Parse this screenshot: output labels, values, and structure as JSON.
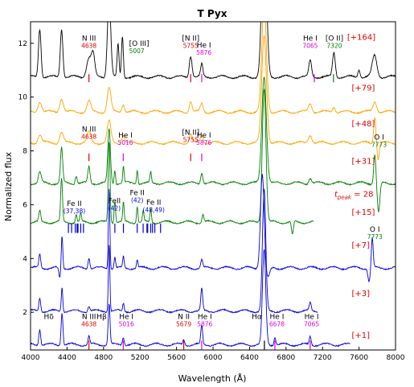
{
  "chart_data": {
    "type": "line",
    "title": "T Pyx",
    "xlabel": "Wavelength (Å)",
    "ylabel": "Normalized flux",
    "xlim": [
      4000,
      8000
    ],
    "ylim": [
      0.6,
      12.8
    ],
    "xticks": [
      4000,
      4400,
      4800,
      5200,
      5600,
      6000,
      6400,
      6800,
      7200,
      7600,
      8000
    ],
    "yticks": [
      2,
      4,
      6,
      8,
      10,
      12
    ],
    "colors": {
      "black": "#000000",
      "orange": "#FFA500",
      "green": "#008000",
      "blue": "#0000E0",
      "red": "#E00000",
      "magenta": "#E000E0"
    },
    "series": [
      {
        "name": "+164",
        "label": "[+164]",
        "color": "#000000",
        "offset": 10.75,
        "label_x": 7470,
        "label_y": 12.12,
        "xrange": [
          4000,
          8000
        ],
        "peaks": [
          [
            4101,
            1.8,
            14
          ],
          [
            4340,
            1.8,
            14
          ],
          [
            4640,
            0.7,
            25
          ],
          [
            4686,
            0.8,
            18
          ],
          [
            4861,
            3,
            18
          ],
          [
            4959,
            1.2,
            10
          ],
          [
            5007,
            1.5,
            10
          ],
          [
            5755,
            0.8,
            15
          ],
          [
            5876,
            0.45,
            12
          ],
          [
            6560,
            6,
            25
          ],
          [
            7065,
            0.6,
            15
          ],
          [
            7325,
            0.9,
            15
          ],
          [
            7600,
            0.3,
            12
          ],
          [
            7770,
            0.8,
            25
          ]
        ]
      },
      {
        "name": "+79",
        "label": "[+79]",
        "color": "#FFA500",
        "offset": 9.45,
        "label_x": 7520,
        "label_y": 10.25,
        "xrange": [
          4000,
          8000
        ],
        "peaks": [
          [
            4101,
            0.4,
            20
          ],
          [
            4340,
            0.5,
            20
          ],
          [
            4640,
            0.4,
            20
          ],
          [
            4861,
            0.9,
            20
          ],
          [
            5016,
            0.3,
            15
          ],
          [
            5755,
            0.4,
            15
          ],
          [
            5876,
            0.3,
            15
          ],
          [
            6560,
            4,
            25
          ],
          [
            7065,
            0.3,
            20
          ],
          [
            7325,
            0.2,
            15
          ],
          [
            7773,
            0.4,
            20
          ]
        ]
      },
      {
        "name": "+48",
        "label": "[+48]",
        "color": "#FFA500",
        "offset": 8.3,
        "label_x": 7520,
        "label_y": 8.92,
        "xrange": [
          4000,
          8000
        ],
        "peaks": [
          [
            4101,
            0.3,
            20
          ],
          [
            4340,
            0.4,
            20
          ],
          [
            4640,
            0.4,
            20
          ],
          [
            4861,
            0.8,
            20
          ],
          [
            5016,
            0.3,
            15
          ],
          [
            5755,
            0.3,
            15
          ],
          [
            5876,
            0.3,
            15
          ],
          [
            6560,
            4,
            25
          ],
          [
            7065,
            0.3,
            20
          ],
          [
            7773,
            1,
            12
          ],
          [
            7810,
            -0.6,
            12
          ]
        ]
      },
      {
        "name": "+31",
        "label": "[+31]",
        "color": "#008000",
        "offset": 6.8,
        "label_x": 7520,
        "label_y": 7.52,
        "xrange": [
          4000,
          8000
        ],
        "peaks": [
          [
            4101,
            0.4,
            15
          ],
          [
            4340,
            1.3,
            12
          ],
          [
            4500,
            0.3,
            10
          ],
          [
            4640,
            0.6,
            12
          ],
          [
            4861,
            2,
            14
          ],
          [
            4924,
            0.5,
            8
          ],
          [
            5018,
            0.6,
            8
          ],
          [
            5169,
            0.5,
            8
          ],
          [
            5317,
            0.4,
            8
          ],
          [
            5876,
            0.4,
            12
          ],
          [
            6560,
            4,
            25
          ],
          [
            7065,
            0.2,
            15
          ],
          [
            7773,
            1.1,
            12
          ],
          [
            7815,
            -1.1,
            14
          ]
        ]
      },
      {
        "name": "+15",
        "label": "[+15]",
        "color": "#008000",
        "offset": 5.35,
        "label_x": 7520,
        "label_y": 5.62,
        "xrange": [
          4000,
          7100
        ],
        "peaks": [
          [
            4101,
            0.4,
            10
          ],
          [
            4340,
            1.6,
            10
          ],
          [
            4500,
            0.3,
            8
          ],
          [
            4550,
            0.3,
            8
          ],
          [
            4861,
            3,
            10
          ],
          [
            4924,
            0.8,
            8
          ],
          [
            5018,
            0.7,
            8
          ],
          [
            5169,
            0.6,
            8
          ],
          [
            5235,
            0.4,
            8
          ],
          [
            5317,
            0.5,
            8
          ],
          [
            5890,
            0.3,
            10
          ],
          [
            6560,
            5,
            20
          ],
          [
            6870,
            -0.5,
            10
          ]
        ]
      },
      {
        "name": "+7",
        "label": "[+7]",
        "color": "#0000E0",
        "offset": 3.65,
        "label_x": 7520,
        "label_y": 4.4,
        "xrange": [
          4000,
          8000
        ],
        "peaks": [
          [
            4101,
            0.5,
            10
          ],
          [
            4320,
            -0.4,
            10
          ],
          [
            4345,
            1.2,
            8
          ],
          [
            4640,
            0.4,
            10
          ],
          [
            4861,
            3,
            8
          ],
          [
            4924,
            0.4,
            8
          ],
          [
            5018,
            0.4,
            8
          ],
          [
            5169,
            0.3,
            8
          ],
          [
            5876,
            0.3,
            10
          ],
          [
            6540,
            3.5,
            20
          ],
          [
            6600,
            -0.4,
            20
          ],
          [
            7745,
            1.1,
            10
          ],
          [
            7710,
            -0.5,
            12
          ]
        ]
      },
      {
        "name": "+3",
        "label": "[+3]",
        "color": "#0000E0",
        "offset": 2.05,
        "label_x": 7520,
        "label_y": 2.6,
        "xrange": [
          4000,
          7150
        ],
        "peaks": [
          [
            4101,
            0.5,
            10
          ],
          [
            4345,
            0.9,
            8
          ],
          [
            4640,
            0.2,
            10
          ],
          [
            4861,
            2.5,
            8
          ],
          [
            5018,
            0.3,
            8
          ],
          [
            5876,
            0.8,
            10
          ],
          [
            6560,
            4.5,
            18
          ],
          [
            7065,
            0.3,
            10
          ]
        ]
      },
      {
        "name": "+1",
        "label": "[+1]",
        "color": "#0000E0",
        "offset": 0.8,
        "label_x": 7520,
        "label_y": 1.05,
        "xrange": [
          4000,
          7500
        ],
        "peaks": [
          [
            4101,
            0.6,
            10
          ],
          [
            4345,
            1.2,
            10
          ],
          [
            4640,
            0.3,
            10
          ],
          [
            4861,
            1.5,
            10
          ],
          [
            5016,
            0.3,
            10
          ],
          [
            5679,
            0.2,
            10
          ],
          [
            5876,
            0.7,
            10
          ],
          [
            6560,
            3.5,
            18
          ],
          [
            6678,
            0.3,
            10
          ],
          [
            7065,
            0.3,
            10
          ]
        ]
      }
    ],
    "line_labels": [
      {
        "text": "N III",
        "wave": "4638",
        "x": 4640,
        "y": 12.1,
        "wave_color": "#E00000",
        "marker": {
          "x": 4640,
          "y0": 10.85,
          "y1": 10.55,
          "color": "#E00000"
        }
      },
      {
        "text": "[O III]",
        "wave": "5007",
        "x": 5080,
        "y": 11.9,
        "wave_color": "#008000",
        "align": "start"
      },
      {
        "text": "[N II]",
        "wave": "5755",
        "x": 5755,
        "y": 12.1,
        "wave_color": "#E00000",
        "marker": {
          "x": 5755,
          "y0": 10.85,
          "y1": 10.55,
          "color": "#E00000"
        }
      },
      {
        "text": "He I",
        "wave": "5876",
        "x": 5900,
        "y": 11.85,
        "wave_color": "#E000E0",
        "marker": {
          "x": 5876,
          "y0": 10.85,
          "y1": 10.55,
          "color": "#E000E0"
        }
      },
      {
        "text": "He I",
        "wave": "7065",
        "x": 7065,
        "y": 12.1,
        "wave_color": "#E000E0",
        "marker": {
          "x": 7110,
          "y0": 10.85,
          "y1": 10.55,
          "color": "#E000E0"
        }
      },
      {
        "text": "[O II]",
        "wave": "7320",
        "x": 7330,
        "y": 12.1,
        "wave_color": "#008000",
        "marker": {
          "x": 7320,
          "y0": 10.85,
          "y1": 10.55,
          "color": "#008000"
        }
      },
      {
        "text": "N III",
        "wave": "4638",
        "x": 4640,
        "y": 8.72,
        "wave_color": "#E00000",
        "marker": {
          "x": 4640,
          "y0": 7.9,
          "y1": 7.62,
          "color": "#E00000"
        }
      },
      {
        "text": "He I",
        "wave": "5016",
        "x": 5040,
        "y": 8.5,
        "wave_color": "#E000E0",
        "marker": {
          "x": 5016,
          "y0": 7.9,
          "y1": 7.62,
          "color": "#E000E0"
        }
      },
      {
        "text": "[N II]",
        "wave": "5755",
        "x": 5755,
        "y": 8.6,
        "wave_color": "#E00000",
        "marker": {
          "x": 5755,
          "y0": 7.9,
          "y1": 7.62,
          "color": "#E00000"
        }
      },
      {
        "text": "He I",
        "wave": "5876",
        "x": 5900,
        "y": 8.5,
        "wave_color": "#E000E0",
        "marker": {
          "x": 5876,
          "y0": 7.9,
          "y1": 7.62,
          "color": "#E000E0"
        }
      },
      {
        "text": "O I",
        "wave": "7773",
        "x": 7820,
        "y": 8.42,
        "wave_color": "#008000"
      },
      {
        "text": "Fe II",
        "wave": "(37,38)",
        "x": 4480,
        "y": 5.95,
        "wave_color": "#0000E0",
        "ticks": {
          "xs": [
            4415,
            4450,
            4490,
            4510,
            4520,
            4550,
            4580
          ],
          "y0": 5.3,
          "y1": 4.95,
          "color": "#0000E0"
        }
      },
      {
        "text": "FeII",
        "wave": "(42)",
        "x": 4920,
        "y": 6.05,
        "wave_color": "#0000E0",
        "ticks": {
          "xs": [
            4924,
            5018
          ],
          "y0": 5.3,
          "y1": 4.95,
          "color": "#0000E0"
        }
      },
      {
        "text": "Fe II",
        "wave": "(42)",
        "x": 5169,
        "y": 6.35,
        "wave_color": "#0000E0",
        "ticks": {
          "xs": [
            5169
          ],
          "y0": 5.3,
          "y1": 4.95,
          "color": "#0000E0"
        }
      },
      {
        "text": "Fe II",
        "wave": "(48,49)",
        "x": 5350,
        "y": 6.0,
        "wave_color": "#0000E0",
        "ticks": {
          "xs": [
            5234,
            5276,
            5284,
            5317,
            5337,
            5362,
            5425
          ],
          "y0": 5.3,
          "y1": 4.95,
          "color": "#0000E0"
        }
      },
      {
        "text": "O I",
        "wave": "7773",
        "x": 7773,
        "y": 5.0,
        "wave_color": "#008000"
      },
      {
        "text": "Hδ",
        "x": 4200,
        "y": 1.75
      },
      {
        "text": "N III",
        "wave": "4638",
        "x": 4640,
        "y": 1.75,
        "wave_color": "#E00000",
        "marker": {
          "x": 4640,
          "y0": 0.95,
          "y1": 0.62,
          "color": "#E00000"
        }
      },
      {
        "text": "Hβ",
        "x": 4780,
        "y": 1.75
      },
      {
        "text": "He I",
        "wave": "5016",
        "x": 5050,
        "y": 1.75,
        "wave_color": "#E000E0",
        "marker": {
          "x": 5016,
          "y0": 0.95,
          "y1": 0.62,
          "color": "#E000E0"
        }
      },
      {
        "text": "N II",
        "wave": "5679",
        "x": 5679,
        "y": 1.75,
        "wave_color": "#E00000",
        "marker": {
          "x": 5679,
          "y0": 0.95,
          "y1": 0.62,
          "color": "#E00000"
        }
      },
      {
        "text": "He I",
        "wave": "5876",
        "x": 5910,
        "y": 1.75,
        "wave_color": "#E000E0",
        "marker": {
          "x": 5876,
          "y0": 0.95,
          "y1": 0.62,
          "color": "#E000E0"
        }
      },
      {
        "text": "Hα",
        "x": 6480,
        "y": 1.75,
        "marker": {
          "x": 6563,
          "y0": 0.95,
          "y1": 0.62,
          "color": "#000000"
        }
      },
      {
        "text": "He I",
        "wave": "6678",
        "x": 6700,
        "y": 1.75,
        "wave_color": "#E000E0",
        "marker": {
          "x": 6678,
          "y0": 0.95,
          "y1": 0.62,
          "color": "#E000E0"
        }
      },
      {
        "text": "He I",
        "wave": "7065",
        "x": 7080,
        "y": 1.75,
        "wave_color": "#E000E0",
        "marker": {
          "x": 7065,
          "y0": 0.95,
          "y1": 0.62,
          "color": "#E000E0"
        }
      }
    ],
    "annotation": {
      "text": "t",
      "subscript": "peak",
      "value": " = 28",
      "x": 7330,
      "y": 6.3
    },
    "grid": false
  }
}
